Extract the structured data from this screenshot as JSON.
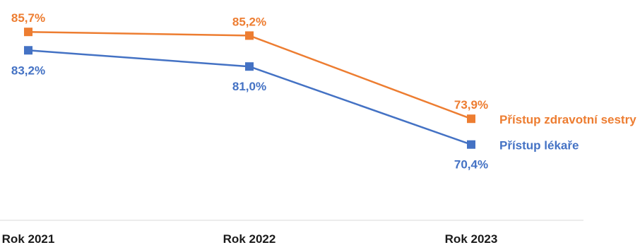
{
  "chart_data": {
    "type": "line",
    "title": "",
    "xlabel": "",
    "ylabel": "",
    "categories": [
      "Rok 2021",
      "Rok 2022",
      "Rok 2023"
    ],
    "ylim": [
      68,
      88
    ],
    "grid": false,
    "legend_placement": "right, inline at line ends",
    "series": [
      {
        "name": "Přístup zdravotní sestry",
        "color": "#ED7D31",
        "values": [
          85.7,
          85.2,
          73.9
        ],
        "labels": [
          "85,7%",
          "85,2%",
          "73,9%"
        ]
      },
      {
        "name": "Přístup lékaře",
        "color": "#4472C4",
        "values": [
          83.2,
          81.0,
          70.4
        ],
        "labels": [
          "83,2%",
          "81,0%",
          "70,4%"
        ]
      }
    ]
  }
}
